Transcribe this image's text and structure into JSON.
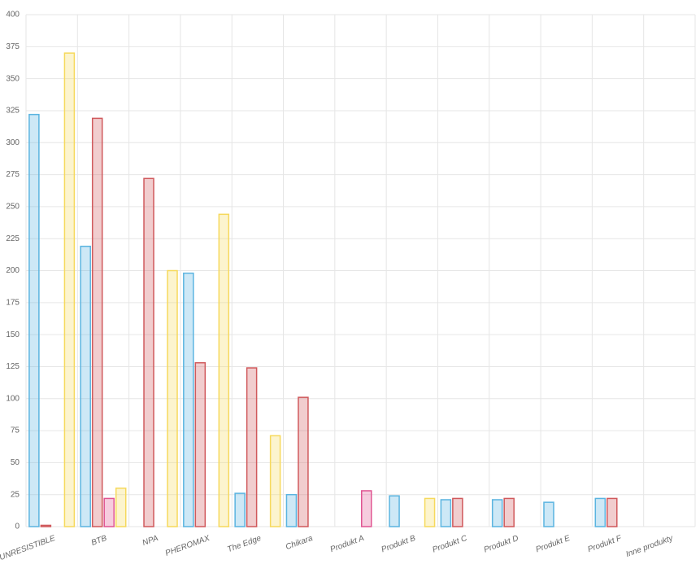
{
  "chart_data": {
    "type": "bar",
    "categories": [
      "UNRESISTIBLE",
      "BTB",
      "NPA",
      "PHEROMAX",
      "The Edge",
      "Chikara",
      "Produkt A",
      "Produkt B",
      "Produkt C",
      "Produkt D",
      "Produkt E",
      "Produkt F",
      "Inne produkty"
    ],
    "series": [
      {
        "color": "#5ab4e0",
        "values": [
          322,
          219,
          0,
          198,
          26,
          25,
          0,
          24,
          21,
          21,
          19,
          22,
          0
        ]
      },
      {
        "color": "#d0595c",
        "values": [
          1,
          319,
          272,
          128,
          124,
          101,
          0,
          0,
          22,
          22,
          0,
          22,
          0
        ]
      },
      {
        "color": "#e05592",
        "values": [
          0,
          22,
          0,
          0,
          0,
          0,
          28,
          0,
          0,
          0,
          0,
          0,
          0
        ]
      },
      {
        "color": "#f6d95c",
        "values": [
          370,
          30,
          200,
          244,
          71,
          0,
          0,
          22,
          0,
          0,
          0,
          0,
          0
        ]
      }
    ],
    "ylim": [
      0,
      400
    ],
    "yticks": [
      0,
      25,
      50,
      75,
      100,
      125,
      150,
      175,
      200,
      225,
      250,
      275,
      300,
      325,
      350,
      375,
      400
    ],
    "grid": true
  }
}
